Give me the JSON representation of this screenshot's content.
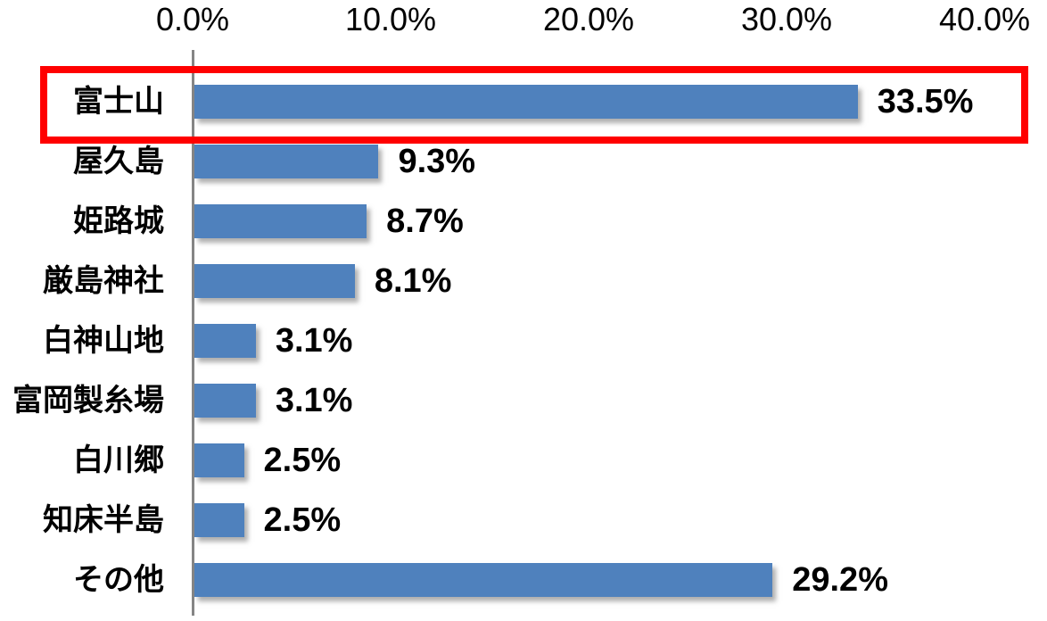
{
  "chart_data": {
    "type": "bar",
    "orientation": "horizontal",
    "title": "",
    "categories": [
      "富士山",
      "屋久島",
      "姫路城",
      "厳島神社",
      "白神山地",
      "富岡製糸場",
      "白川郷",
      "知床半島",
      "その他"
    ],
    "values": [
      33.5,
      9.3,
      8.7,
      8.1,
      3.1,
      3.1,
      2.5,
      2.5,
      29.2
    ],
    "value_labels": [
      "33.5%",
      "9.3%",
      "8.7%",
      "8.1%",
      "3.1%",
      "3.1%",
      "2.5%",
      "2.5%",
      "29.2%"
    ],
    "x_axis": {
      "position": "top",
      "min": 0,
      "max": 40,
      "ticks": [
        0,
        10,
        20,
        30,
        40
      ],
      "tick_labels": [
        "0.0%",
        "10.0%",
        "20.0%",
        "30.0%",
        "40.0%"
      ]
    },
    "highlighted_category": "富士山",
    "highlight_index": 0,
    "legend": "none",
    "grid": "off",
    "colors": {
      "bar": "#4F81BD",
      "highlight_box": "#FF0000",
      "axis_line": "#858585",
      "text": "#000000"
    }
  }
}
